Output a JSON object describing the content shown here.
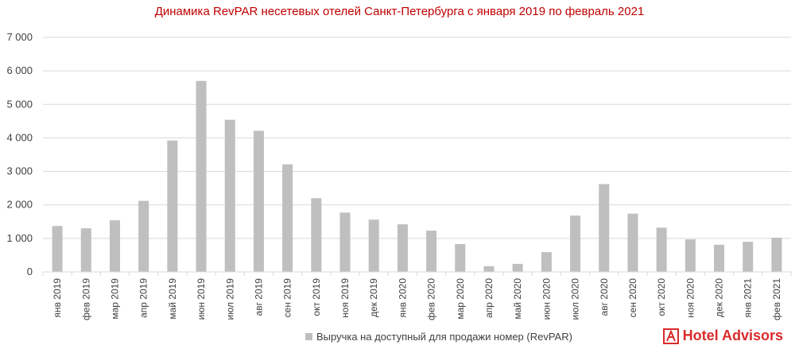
{
  "brand": {
    "name": "Hotel Advisors",
    "color": "#d92b2b"
  },
  "chart_data": {
    "type": "bar",
    "title": "Динамика RevPAR несетевых отелей Санкт-Петербурга с января 2019 по февраль 2021",
    "title_color": "#c00000",
    "bar_color": "#bfbfbf",
    "categories": [
      "янв 2019",
      "фев 2019",
      "мар 2019",
      "апр 2019",
      "май 2019",
      "июн 2019",
      "июл 2019",
      "авг 2019",
      "сен 2019",
      "окт 2019",
      "ноя 2019",
      "дек 2019",
      "янв 2020",
      "фев 2020",
      "мар 2020",
      "апр 2020",
      "май 2020",
      "июн 2020",
      "июл 2020",
      "авг 2020",
      "сен 2020",
      "окт 2020",
      "ноя 2020",
      "дек 2020",
      "янв 2021",
      "фев 2021"
    ],
    "series": [
      {
        "name": "Выручка на доступный для продажи номер (RevPAR)",
        "values": [
          1370,
          1300,
          1540,
          2120,
          3920,
          5700,
          4540,
          4210,
          3210,
          2200,
          1770,
          1560,
          1420,
          1230,
          830,
          170,
          240,
          590,
          1680,
          2620,
          1740,
          1320,
          970,
          810,
          900,
          1020
        ]
      }
    ],
    "yticks": [
      "0",
      "1 000",
      "2 000",
      "3 000",
      "4 000",
      "5 000",
      "6 000",
      "7 000"
    ],
    "ylim": [
      0,
      7000
    ],
    "grid": true,
    "legend": "bottom"
  }
}
